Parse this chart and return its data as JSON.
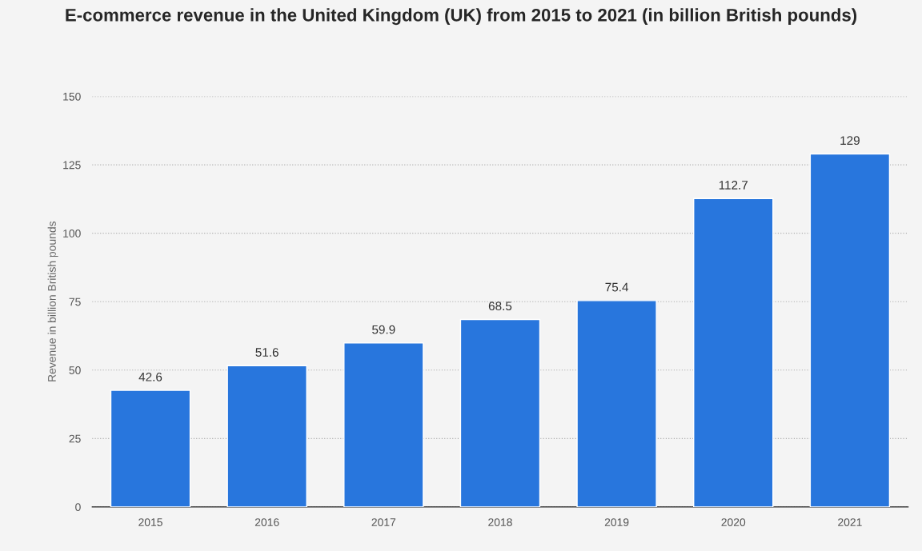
{
  "chart_data": {
    "type": "bar",
    "title": "E-commerce revenue in the United Kingdom (UK) from 2015 to 2021 (in billion British pounds)",
    "ylabel": "Revenue in billion British pounds",
    "categories": [
      "2015",
      "2016",
      "2017",
      "2018",
      "2019",
      "2020",
      "2021"
    ],
    "values": [
      42.6,
      51.6,
      59.9,
      68.5,
      75.4,
      112.7,
      129
    ],
    "color": "#2876dd",
    "ylim": [
      0,
      150
    ],
    "yticks": [
      0,
      25,
      50,
      75,
      100,
      125,
      150
    ],
    "grid": "y",
    "data_labels": true
  }
}
